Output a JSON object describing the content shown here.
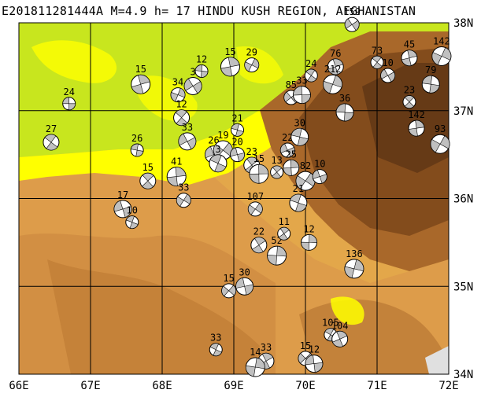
{
  "title": "E201811281444A M=4.9 h= 17 HINDU KUSH REGION, AFGHANISTAN",
  "axes": {
    "lon_labels": [
      "66E",
      "67E",
      "68E",
      "69E",
      "70E",
      "71E",
      "72E"
    ],
    "lat_labels": [
      "38N",
      "37N",
      "36N",
      "35N",
      "34N"
    ],
    "lon_range": [
      66,
      72
    ],
    "lat_range": [
      34,
      38
    ]
  },
  "colors": {
    "low_green": "#c8e61e",
    "mid_yellow": "#ffff00",
    "tan": "#e3a74a",
    "brown": "#a9682a",
    "dark_brown": "#6e3e16",
    "compressional": "#c0c0c0",
    "gridline": "#000000"
  },
  "events": [
    {
      "label": "24",
      "lon": 66.7,
      "lat": 37.08
    },
    {
      "label": "27",
      "lon": 66.45,
      "lat": 36.64
    },
    {
      "label": "15",
      "lon": 67.7,
      "lat": 37.3
    },
    {
      "label": "34",
      "lon": 68.22,
      "lat": 37.18
    },
    {
      "label": "3",
      "lon": 68.43,
      "lat": 37.28
    },
    {
      "label": "12",
      "lon": 68.55,
      "lat": 37.45
    },
    {
      "label": "12",
      "lon": 68.27,
      "lat": 36.92
    },
    {
      "label": "15",
      "lon": 68.95,
      "lat": 37.5
    },
    {
      "label": "29",
      "lon": 69.25,
      "lat": 37.52
    },
    {
      "label": "33",
      "lon": 68.35,
      "lat": 36.65
    },
    {
      "label": "26",
      "lon": 67.65,
      "lat": 36.55
    },
    {
      "label": "15",
      "lon": 67.8,
      "lat": 36.2
    },
    {
      "label": "41",
      "lon": 68.2,
      "lat": 36.25
    },
    {
      "label": "33",
      "lon": 68.3,
      "lat": 35.98
    },
    {
      "label": "26",
      "lon": 68.72,
      "lat": 36.5
    },
    {
      "label": "21",
      "lon": 69.05,
      "lat": 36.78
    },
    {
      "label": "23",
      "lon": 69.25,
      "lat": 36.38
    },
    {
      "label": "15",
      "lon": 69.35,
      "lat": 36.28
    },
    {
      "label": "107",
      "lon": 69.3,
      "lat": 35.88
    },
    {
      "label": "17",
      "lon": 67.45,
      "lat": 35.88
    },
    {
      "label": "10",
      "lon": 67.58,
      "lat": 35.73
    },
    {
      "label": "22",
      "lon": 69.35,
      "lat": 35.47
    },
    {
      "label": "52",
      "lon": 69.6,
      "lat": 35.35
    },
    {
      "label": "15",
      "lon": 68.93,
      "lat": 34.95
    },
    {
      "label": "30",
      "lon": 69.15,
      "lat": 35.0
    },
    {
      "label": "33",
      "lon": 68.75,
      "lat": 34.28
    },
    {
      "label": "33",
      "lon": 69.45,
      "lat": 34.15
    },
    {
      "label": "14",
      "lon": 69.3,
      "lat": 34.08
    },
    {
      "label": "15",
      "lon": 70.0,
      "lat": 34.18
    },
    {
      "label": "12",
      "lon": 70.12,
      "lat": 34.12
    },
    {
      "label": "105",
      "lon": 70.35,
      "lat": 34.45
    },
    {
      "label": "104",
      "lon": 70.48,
      "lat": 34.4
    },
    {
      "label": "136",
      "lon": 70.68,
      "lat": 35.2
    },
    {
      "label": "85",
      "lon": 69.8,
      "lat": 37.15
    },
    {
      "label": "33",
      "lon": 69.95,
      "lat": 37.18
    },
    {
      "label": "24",
      "lon": 70.08,
      "lat": 37.4
    },
    {
      "label": "76",
      "lon": 70.42,
      "lat": 37.5
    },
    {
      "label": "212",
      "lon": 70.38,
      "lat": 37.3
    },
    {
      "label": "159",
      "lon": 70.65,
      "lat": 37.98
    },
    {
      "label": "36",
      "lon": 70.55,
      "lat": 36.98
    },
    {
      "label": "73",
      "lon": 71.0,
      "lat": 37.55
    },
    {
      "label": "45",
      "lon": 71.45,
      "lat": 37.6
    },
    {
      "label": "142",
      "lon": 71.9,
      "lat": 37.62
    },
    {
      "label": "10",
      "lon": 71.15,
      "lat": 37.4
    },
    {
      "label": "79",
      "lon": 71.75,
      "lat": 37.3
    },
    {
      "label": "23",
      "lon": 71.45,
      "lat": 37.1
    },
    {
      "label": "142",
      "lon": 71.55,
      "lat": 36.8
    },
    {
      "label": "93",
      "lon": 71.88,
      "lat": 36.62
    },
    {
      "label": "22",
      "lon": 69.75,
      "lat": 36.55
    },
    {
      "label": "30",
      "lon": 69.92,
      "lat": 36.7
    },
    {
      "label": "13",
      "lon": 69.6,
      "lat": 36.3
    },
    {
      "label": "25",
      "lon": 69.8,
      "lat": 36.35
    },
    {
      "label": "82",
      "lon": 70.0,
      "lat": 36.2
    },
    {
      "label": "10",
      "lon": 70.2,
      "lat": 36.25
    },
    {
      "label": "21",
      "lon": 69.9,
      "lat": 35.95
    },
    {
      "label": "11",
      "lon": 69.7,
      "lat": 35.6
    },
    {
      "label": "12",
      "lon": 70.05,
      "lat": 35.5
    },
    {
      "label": "19",
      "lon": 68.85,
      "lat": 36.55
    },
    {
      "label": "20",
      "lon": 69.05,
      "lat": 36.5
    },
    {
      "label": "3",
      "lon": 68.78,
      "lat": 36.4
    }
  ]
}
